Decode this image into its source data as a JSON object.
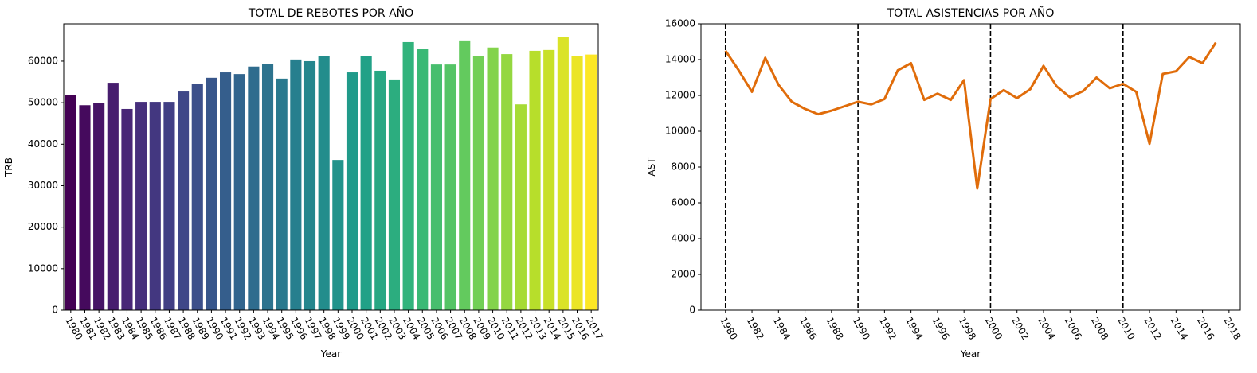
{
  "chart_data": [
    {
      "type": "bar",
      "title": "TOTAL DE REBOTES POR AÑO",
      "x_label": "Year",
      "y_label": "TRB",
      "palette": "viridis",
      "categories": [
        "1980",
        "1981",
        "1982",
        "1983",
        "1984",
        "1985",
        "1986",
        "1987",
        "1988",
        "1989",
        "1990",
        "1991",
        "1992",
        "1993",
        "1994",
        "1995",
        "1996",
        "1997",
        "1998",
        "1999",
        "2000",
        "2001",
        "2002",
        "2003",
        "2004",
        "2005",
        "2006",
        "2007",
        "2008",
        "2009",
        "2010",
        "2011",
        "2012",
        "2013",
        "2014",
        "2015",
        "2016",
        "2017"
      ],
      "values": [
        51800,
        49400,
        50000,
        54800,
        48500,
        50200,
        50200,
        50200,
        52700,
        54600,
        56000,
        57300,
        56900,
        58700,
        59400,
        55800,
        60400,
        60000,
        61300,
        36200,
        57300,
        61200,
        57700,
        55600,
        64600,
        62900,
        59200,
        59200,
        65000,
        61200,
        63300,
        61700,
        49600,
        62500,
        62700,
        65800,
        61200,
        61600
      ],
      "ylim": [
        0,
        69000
      ],
      "yticks": [
        0,
        10000,
        20000,
        30000,
        40000,
        50000,
        60000
      ]
    },
    {
      "type": "line",
      "title": "TOTAL ASISTENCIAS POR AÑO",
      "x_label": "Year",
      "y_label": "AST",
      "x": [
        1980,
        1981,
        1982,
        1983,
        1984,
        1985,
        1986,
        1987,
        1988,
        1989,
        1990,
        1991,
        1992,
        1993,
        1994,
        1995,
        1996,
        1997,
        1998,
        1999,
        2000,
        2001,
        2002,
        2003,
        2004,
        2005,
        2006,
        2007,
        2008,
        2009,
        2010,
        2011,
        2012,
        2013,
        2014,
        2015,
        2016,
        2017
      ],
      "series": [
        {
          "name": "AST",
          "color": "#e06c0a",
          "values": [
            14500,
            13400,
            12200,
            14100,
            12600,
            11650,
            11250,
            10950,
            11150,
            11400,
            11650,
            11500,
            11800,
            13400,
            13800,
            11750,
            12100,
            11750,
            12850,
            6800,
            11800,
            12300,
            11850,
            12350,
            13650,
            12500,
            11900,
            12250,
            13000,
            12400,
            12650,
            12200,
            9300,
            13200,
            13350,
            14150,
            13800,
            14950
          ]
        }
      ],
      "vlines": [
        1980,
        1990,
        2000,
        2010
      ],
      "xlim": [
        1978.15,
        2018.85
      ],
      "xticks": [
        1980,
        1982,
        1984,
        1986,
        1988,
        1990,
        1992,
        1994,
        1996,
        1998,
        2000,
        2002,
        2004,
        2006,
        2008,
        2010,
        2012,
        2014,
        2016,
        2018
      ],
      "ylim": [
        0,
        16000
      ],
      "yticks": [
        0,
        2000,
        4000,
        6000,
        8000,
        10000,
        12000,
        14000,
        16000
      ]
    }
  ]
}
